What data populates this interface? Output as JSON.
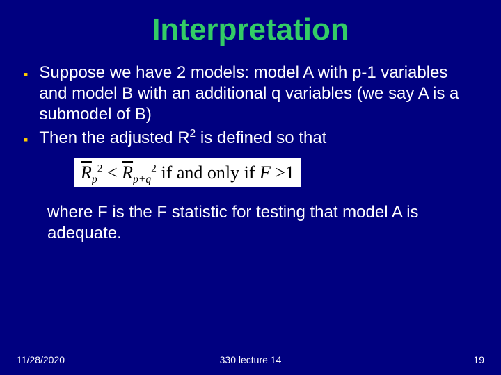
{
  "colors": {
    "background": "#000080",
    "title": "#33cc66",
    "body_text": "#ffffff",
    "bullet_marker": "#ffcc00",
    "formula_bg": "#ffffff",
    "formula_text": "#000000"
  },
  "typography": {
    "title_font": "Comic Sans MS",
    "title_size_pt": 44,
    "body_font": "Arial",
    "body_size_pt": 24,
    "formula_font": "Times New Roman",
    "formula_size_pt": 26,
    "footer_size_pt": 14
  },
  "title": "Interpretation",
  "bullets": [
    "Suppose we have 2 models: model A with p-1 variables and model B with an additional q variables (we say A is a submodel of B)",
    "Then the adjusted R2 is defined  so that"
  ],
  "formula": {
    "r_symbol": "R",
    "sub_left": "p",
    "sub_right": "p+q",
    "sup": "2",
    "lt": "<",
    "middle": " if and only if ",
    "f_symbol": "F",
    "gt": ">",
    "one": "1"
  },
  "after_formula": "where F is the F statistic for testing that model A is adequate.",
  "footer": {
    "date": "11/28/2020",
    "center": "330 lecture 14",
    "page": "19"
  }
}
